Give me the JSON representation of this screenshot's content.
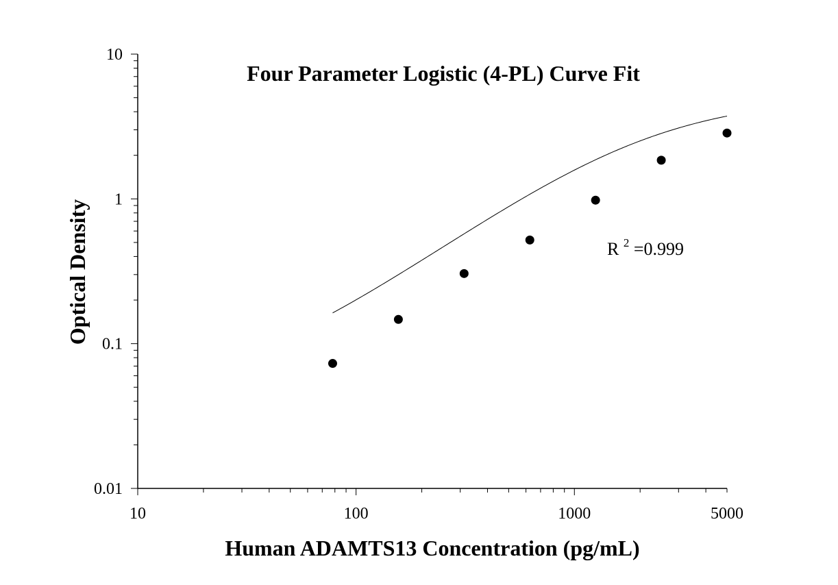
{
  "chart_data": {
    "type": "scatter",
    "title": "Four Parameter Logistic (4-PL) Curve Fit",
    "xlabel": "Human ADAMTS13 Concentration (pg/mL)",
    "ylabel": "Optical Density",
    "x_scale": "log",
    "y_scale": "log",
    "xlim": [
      10,
      5000
    ],
    "ylim": [
      0.01,
      10
    ],
    "x_tick_labels": [
      "10",
      "100",
      "1000",
      "5000"
    ],
    "x_tick_values": [
      10,
      100,
      1000,
      5000
    ],
    "y_tick_labels": [
      "0.01",
      "0.1",
      "1",
      "10"
    ],
    "y_tick_values": [
      0.01,
      0.1,
      1,
      10
    ],
    "grid": false,
    "annotation": {
      "base": "R",
      "superscript": "2",
      "rest": "=0.999"
    },
    "colors": {
      "points": "#000000",
      "curve": "#000000",
      "axes": "#000000"
    },
    "series": [
      {
        "kind": "points",
        "x": [
          78.125,
          156.25,
          312.5,
          625,
          1250,
          2500,
          5000
        ],
        "y": [
          0.073,
          0.147,
          0.305,
          0.52,
          0.98,
          1.85,
          2.85
        ]
      }
    ],
    "fit_curve": {
      "model": "4PL",
      "x_range": [
        78.125,
        5000
      ],
      "A": 0.042,
      "B": 1.13,
      "C": 2080,
      "D": 5.1
    }
  }
}
